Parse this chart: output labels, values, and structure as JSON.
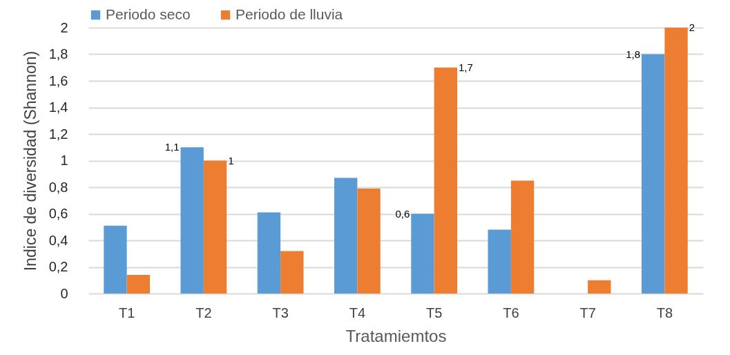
{
  "chart_data": {
    "type": "bar",
    "xlabel": "Tratamiemtos",
    "ylabel": "Indice de diversidad (Shannon)",
    "categories": [
      "T1",
      "T2",
      "T3",
      "T4",
      "T5",
      "T6",
      "T7",
      "T8"
    ],
    "series": [
      {
        "name": "Periodo seco",
        "color": "#5b9bd5",
        "values": [
          0.51,
          1.1,
          0.61,
          0.87,
          0.6,
          0.48,
          0,
          1.8
        ],
        "value_labels": [
          null,
          "1,1",
          null,
          null,
          "0,6",
          null,
          null,
          "1,8"
        ]
      },
      {
        "name": "Periodo de lluvia",
        "color": "#ed7d31",
        "values": [
          0.14,
          1,
          0.32,
          0.79,
          1.7,
          0.85,
          0.1,
          2
        ],
        "value_labels": [
          null,
          "1",
          null,
          null,
          "1,7",
          null,
          null,
          "2"
        ]
      }
    ],
    "ylim": [
      0,
      2
    ],
    "yticks": [
      0,
      {
        "value": 0.2,
        "label": "0,2"
      },
      {
        "value": 0.4,
        "label": "0,4"
      },
      {
        "value": 0.6,
        "label": "0,6"
      },
      {
        "value": 0.8,
        "label": "0,8"
      },
      1,
      {
        "value": 1.2,
        "label": "1,2"
      },
      {
        "value": 1.4,
        "label": "1,4"
      },
      {
        "value": 1.6,
        "label": "1,6"
      },
      {
        "value": 1.8,
        "label": "1,8"
      },
      2
    ],
    "grid": "y",
    "legend": "top"
  }
}
